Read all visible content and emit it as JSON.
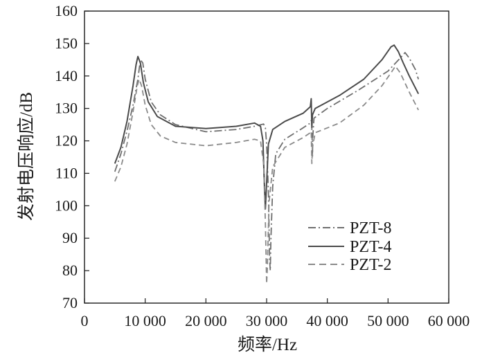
{
  "chart_data": {
    "type": "line",
    "title": "",
    "xlabel": "频率/Hz",
    "ylabel": "发射电压响应/dB",
    "xlim": [
      0,
      60000
    ],
    "ylim": [
      70,
      160
    ],
    "x_ticks": [
      0,
      10000,
      20000,
      30000,
      40000,
      50000,
      60000
    ],
    "x_tick_labels": [
      "0",
      "10 000",
      "20 000",
      "30 000",
      "40 000",
      "50 000",
      "60 000"
    ],
    "y_ticks": [
      70,
      80,
      90,
      100,
      110,
      120,
      130,
      140,
      150,
      160
    ],
    "y_tick_labels": [
      "70",
      "80",
      "90",
      "100",
      "110",
      "120",
      "130",
      "140",
      "150",
      "160"
    ],
    "grid": false,
    "legend_position": "lower-right",
    "series": [
      {
        "name": "PZT-8",
        "style": "dash-dot",
        "color": "#6e6e6e",
        "points": [
          [
            5000,
            110.5
          ],
          [
            6000,
            116
          ],
          [
            7000,
            123
          ],
          [
            8000,
            131
          ],
          [
            8800,
            139
          ],
          [
            9200,
            145
          ],
          [
            9600,
            144
          ],
          [
            10000,
            139
          ],
          [
            11000,
            132
          ],
          [
            12500,
            128
          ],
          [
            15000,
            125
          ],
          [
            20000,
            122.8
          ],
          [
            25000,
            123.5
          ],
          [
            28000,
            124.5
          ],
          [
            29500,
            125.2
          ],
          [
            29800,
            124
          ],
          [
            30000,
            119
          ],
          [
            30300,
            104
          ],
          [
            30500,
            83
          ],
          [
            30600,
            80
          ],
          [
            30700,
            89
          ],
          [
            31000,
            106
          ],
          [
            31500,
            116
          ],
          [
            33000,
            120.5
          ],
          [
            36000,
            124
          ],
          [
            37200,
            125.5
          ],
          [
            37400,
            126.5
          ],
          [
            37500,
            120
          ],
          [
            37550,
            115
          ],
          [
            37600,
            121
          ],
          [
            37800,
            127
          ],
          [
            40000,
            130
          ],
          [
            45000,
            135.5
          ],
          [
            50000,
            141.5
          ],
          [
            52000,
            145.5
          ],
          [
            52800,
            147.2
          ],
          [
            53500,
            145.5
          ],
          [
            54500,
            142
          ],
          [
            55000,
            139
          ]
        ]
      },
      {
        "name": "PZT-4",
        "style": "solid",
        "color": "#4a4a4a",
        "points": [
          [
            5000,
            113
          ],
          [
            6000,
            118
          ],
          [
            7000,
            126
          ],
          [
            8000,
            137
          ],
          [
            8500,
            143.5
          ],
          [
            8800,
            146
          ],
          [
            9200,
            144
          ],
          [
            9700,
            138
          ],
          [
            10500,
            132
          ],
          [
            12000,
            127.5
          ],
          [
            15000,
            124.5
          ],
          [
            20000,
            123.8
          ],
          [
            25000,
            124.5
          ],
          [
            28000,
            125.5
          ],
          [
            29000,
            124.5
          ],
          [
            29400,
            120
          ],
          [
            29600,
            108
          ],
          [
            29800,
            99
          ],
          [
            30000,
            107
          ],
          [
            30300,
            119
          ],
          [
            31000,
            123.5
          ],
          [
            33000,
            126
          ],
          [
            36000,
            128.5
          ],
          [
            37200,
            130.5
          ],
          [
            37350,
            133
          ],
          [
            37450,
            124
          ],
          [
            37550,
            128
          ],
          [
            38000,
            130
          ],
          [
            42000,
            134
          ],
          [
            46000,
            139
          ],
          [
            49000,
            145
          ],
          [
            50500,
            149
          ],
          [
            51000,
            149.5
          ],
          [
            51700,
            147.5
          ],
          [
            52500,
            144
          ],
          [
            53500,
            140
          ],
          [
            55000,
            134.5
          ]
        ]
      },
      {
        "name": "PZT-2",
        "style": "dash",
        "color": "#8a8a8a",
        "points": [
          [
            5000,
            107.5
          ],
          [
            6000,
            112
          ],
          [
            7000,
            119
          ],
          [
            8000,
            129
          ],
          [
            8700,
            137
          ],
          [
            9000,
            139
          ],
          [
            9400,
            137
          ],
          [
            10000,
            131
          ],
          [
            11000,
            125
          ],
          [
            12500,
            121.5
          ],
          [
            15000,
            119.5
          ],
          [
            20000,
            118.5
          ],
          [
            25000,
            119.5
          ],
          [
            28000,
            120.5
          ],
          [
            29000,
            120
          ],
          [
            29500,
            113
          ],
          [
            29800,
            95
          ],
          [
            30000,
            76
          ],
          [
            30100,
            80
          ],
          [
            30400,
            101
          ],
          [
            31000,
            112
          ],
          [
            33000,
            118
          ],
          [
            36000,
            121
          ],
          [
            37200,
            122.5
          ],
          [
            37350,
            123
          ],
          [
            37450,
            113
          ],
          [
            37550,
            118
          ],
          [
            38000,
            122.5
          ],
          [
            42000,
            125.5
          ],
          [
            46000,
            131
          ],
          [
            49000,
            137
          ],
          [
            50500,
            141
          ],
          [
            51200,
            143
          ],
          [
            52000,
            141
          ],
          [
            53500,
            135
          ],
          [
            55000,
            129.5
          ]
        ]
      }
    ]
  }
}
